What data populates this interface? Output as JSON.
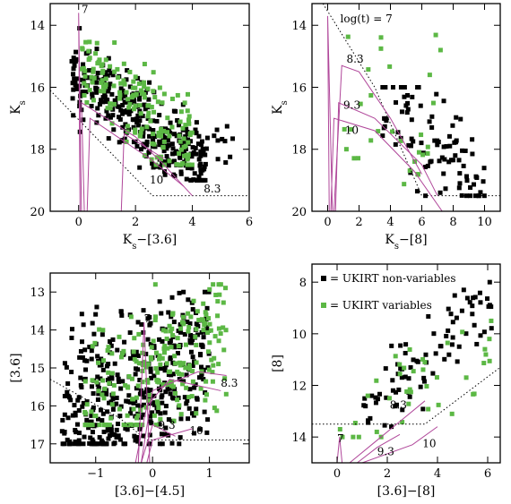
{
  "colors": {
    "nonvar": "#000000",
    "var": "#5cb845",
    "isochrone": "#b0479a",
    "limit": "#000000"
  },
  "chart_data": [
    {
      "type": "scatter",
      "xlabel": "K_s−[3.6]",
      "ylabel": "K_s",
      "xlim": [
        -1,
        6
      ],
      "ylim": [
        20,
        13.3
      ],
      "xticks": [
        0,
        2,
        4,
        6
      ],
      "yticks": [
        14,
        16,
        18,
        20
      ],
      "annotations": [
        {
          "text": "7",
          "x": 0.1,
          "y": 13.6
        },
        {
          "text": "10",
          "x": 2.5,
          "y": 19.1
        },
        {
          "text": "8.3",
          "x": 4.4,
          "y": 19.4
        }
      ],
      "series": [
        {
          "key": "nonvar",
          "box": [
            -0.3,
            4.5,
            14.0,
            19.0
          ],
          "n": 320,
          "seed": 11,
          "trend": [
            [
              -0.3,
              15.5
            ],
            [
              4.5,
              18.6
            ]
          ],
          "spread": 1.2
        },
        {
          "key": "nonvar_tail",
          "box": [
            3.0,
            5.5,
            17.2,
            18.8
          ],
          "n": 30,
          "seed": 12,
          "trend": null,
          "spread": 0
        },
        {
          "key": "var",
          "box": [
            0.0,
            4.0,
            13.9,
            18.5
          ],
          "n": 170,
          "seed": 13,
          "trend": [
            [
              0.0,
              15.3
            ],
            [
              4.0,
              18.0
            ]
          ],
          "spread": 1.3
        }
      ],
      "limit": [
        [
          -1,
          16.1
        ],
        [
          2.6,
          19.5
        ],
        [
          6,
          19.5
        ]
      ],
      "isochrones": [
        [
          [
            0.05,
            20
          ],
          [
            0.0,
            13.6
          ],
          [
            0.1,
            20
          ]
        ],
        [
          [
            0.2,
            20
          ],
          [
            0.1,
            16.5
          ],
          [
            2.0,
            17.6
          ],
          [
            3.0,
            18.5
          ],
          [
            4.0,
            19.5
          ]
        ],
        [
          [
            0.3,
            20
          ],
          [
            0.4,
            17.0
          ],
          [
            2.5,
            18.3
          ],
          [
            3.7,
            19.2
          ]
        ],
        [
          [
            1.5,
            20
          ],
          [
            1.6,
            17.5
          ],
          [
            3.0,
            18.3
          ]
        ]
      ]
    },
    {
      "type": "scatter",
      "xlabel": "K_s−[8]",
      "ylabel": "K_s",
      "xlim": [
        -1,
        11
      ],
      "ylim": [
        20,
        13.3
      ],
      "xticks": [
        0,
        2,
        4,
        6,
        8,
        10
      ],
      "yticks": [
        14,
        16,
        18,
        20
      ],
      "annotations": [
        {
          "text": "log(t) = 7",
          "x": 0.8,
          "y": 13.9
        },
        {
          "text": "8.3",
          "x": 1.2,
          "y": 15.2
        },
        {
          "text": "9.3",
          "x": 1.0,
          "y": 16.7
        },
        {
          "text": "10",
          "x": 1.1,
          "y": 17.5
        }
      ],
      "series": [
        {
          "key": "nonvar",
          "box": [
            3.5,
            10.0,
            16.0,
            19.5
          ],
          "n": 95,
          "seed": 21,
          "trend": [
            [
              3.5,
              16.8
            ],
            [
              10.0,
              19.0
            ]
          ],
          "spread": 1.6
        },
        {
          "key": "var",
          "box": [
            1.0,
            7.5,
            14.0,
            19.2
          ],
          "n": 30,
          "seed": 22,
          "trend": null,
          "spread": 0
        }
      ],
      "limit": [
        [
          -0.3,
          13.3
        ],
        [
          3.0,
          16.0
        ],
        [
          6.0,
          19.5
        ],
        [
          11,
          19.5
        ]
      ],
      "isochrones": [
        [
          [
            0.1,
            20
          ],
          [
            0.0,
            13.7
          ],
          [
            0.3,
            20
          ]
        ],
        [
          [
            0.4,
            20
          ],
          [
            0.9,
            15.3
          ],
          [
            2.0,
            15.5
          ],
          [
            4.0,
            17.0
          ],
          [
            6.0,
            18.8
          ]
        ],
        [
          [
            0.5,
            20
          ],
          [
            0.7,
            16.5
          ],
          [
            3.0,
            17.0
          ],
          [
            6.0,
            18.5
          ],
          [
            7.0,
            19.5
          ]
        ],
        [
          [
            0.2,
            20
          ],
          [
            0.4,
            17.0
          ],
          [
            3.0,
            17.4
          ],
          [
            5.5,
            18.7
          ],
          [
            7.3,
            20
          ]
        ]
      ]
    },
    {
      "type": "scatter",
      "xlabel": "[3.6]−[4.5]",
      "ylabel": "[3.6]",
      "xlim": [
        -1.8,
        1.7
      ],
      "ylim": [
        17.5,
        12.5
      ],
      "xticks": [
        -1,
        0,
        1
      ],
      "yticks": [
        13,
        14,
        15,
        16,
        17
      ],
      "annotations": [
        {
          "text": "7",
          "x": -0.15,
          "y": 13.8
        },
        {
          "text": "8.3",
          "x": 1.2,
          "y": 15.5
        },
        {
          "text": "9.3",
          "x": 0.1,
          "y": 16.6
        },
        {
          "text": "10",
          "x": 0.65,
          "y": 16.75
        }
      ],
      "series": [
        {
          "key": "nonvar",
          "box": [
            -1.6,
            1.0,
            13.0,
            17.0
          ],
          "n": 420,
          "seed": 31,
          "trend": [
            [
              -0.4,
              15.6
            ],
            [
              0.3,
              15.2
            ]
          ],
          "spread": 2.0
        },
        {
          "key": "var",
          "box": [
            -1.2,
            1.3,
            12.8,
            16.5
          ],
          "n": 230,
          "seed": 32,
          "trend": [
            [
              -0.3,
              15.4
            ],
            [
              0.5,
              14.8
            ]
          ],
          "spread": 1.8
        }
      ],
      "limit": [
        [
          -1.8,
          15.3
        ],
        [
          -0.6,
          16.3
        ],
        [
          -0.1,
          16.9
        ],
        [
          1.7,
          16.9
        ]
      ],
      "isochrones": [
        [
          [
            -0.25,
            17.5
          ],
          [
            -0.15,
            13.8
          ],
          [
            -0.05,
            17.5
          ]
        ],
        [
          [
            -0.3,
            17.5
          ],
          [
            -0.1,
            16.0
          ],
          [
            0.3,
            15.3
          ],
          [
            1.2,
            15.6
          ]
        ],
        [
          [
            -0.2,
            17.5
          ],
          [
            0.0,
            16.5
          ],
          [
            0.4,
            16.8
          ]
        ],
        [
          [
            -0.1,
            17.5
          ],
          [
            0.0,
            16.9
          ],
          [
            0.7,
            16.6
          ]
        ],
        [
          [
            -0.2,
            17.5
          ],
          [
            0.0,
            15.6
          ],
          [
            0.8,
            15.1
          ],
          [
            1.3,
            15.2
          ]
        ]
      ]
    },
    {
      "type": "scatter",
      "xlabel": "[3.6]−[8]",
      "ylabel": "[8]",
      "xlim": [
        -1,
        6.5
      ],
      "ylim": [
        15,
        7.3
      ],
      "xticks": [
        0,
        2,
        4,
        6
      ],
      "yticks": [
        8,
        10,
        12,
        14
      ],
      "legend": [
        {
          "key": "nonvar",
          "label": "= UKIRT non-variables"
        },
        {
          "key": "var",
          "label": "= UKIRT variables"
        }
      ],
      "annotations": [
        {
          "text": "7",
          "x": 0.0,
          "y": 14.2
        },
        {
          "text": "8.3",
          "x": 2.1,
          "y": 12.9
        },
        {
          "text": "9.3",
          "x": 1.6,
          "y": 14.7
        },
        {
          "text": "10",
          "x": 3.4,
          "y": 14.4
        }
      ],
      "series": [
        {
          "key": "nonvar",
          "box": [
            1.0,
            6.2,
            8.0,
            13.6
          ],
          "n": 85,
          "seed": 41,
          "trend": [
            [
              1.0,
              13.0
            ],
            [
              6.2,
              8.8
            ]
          ],
          "spread": 1.5
        },
        {
          "key": "var",
          "box": [
            0.0,
            6.2,
            9.5,
            14.0
          ],
          "n": 40,
          "seed": 42,
          "trend": [
            [
              0.5,
              13.5
            ],
            [
              6.0,
              10.5
            ]
          ],
          "spread": 1.8
        }
      ],
      "limit": [
        [
          -1,
          13.5
        ],
        [
          3.5,
          13.5
        ],
        [
          6.5,
          11.3
        ]
      ],
      "isochrones": [
        [
          [
            0.0,
            15
          ],
          [
            0.1,
            14.0
          ],
          [
            0.2,
            15
          ]
        ],
        [
          [
            0.5,
            15
          ],
          [
            1.5,
            14.2
          ],
          [
            2.5,
            13.4
          ],
          [
            3.5,
            12.6
          ]
        ],
        [
          [
            0.8,
            15
          ],
          [
            1.6,
            14.4
          ],
          [
            2.5,
            13.9
          ]
        ],
        [
          [
            1.0,
            15
          ],
          [
            3.0,
            14.3
          ],
          [
            4.0,
            13.6
          ]
        ]
      ]
    }
  ]
}
